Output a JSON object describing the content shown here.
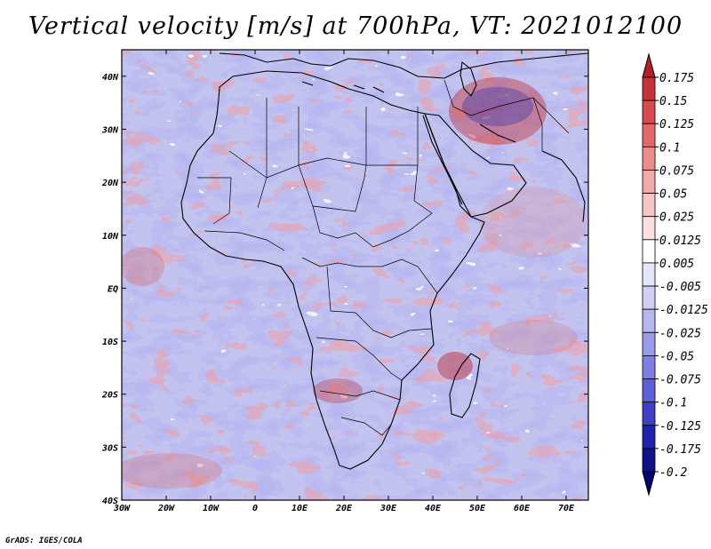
{
  "title": "Vertical velocity [m/s] at 700hPa, VT: 2021012100",
  "footer": "GrADS: IGES/COLA",
  "map": {
    "lon_range": [
      -30,
      75
    ],
    "lat_range": [
      -40,
      45
    ],
    "lon_ticks": [
      "30W",
      "20W",
      "10W",
      "0",
      "10E",
      "20E",
      "30E",
      "40E",
      "50E",
      "60E",
      "70E"
    ],
    "lat_ticks": [
      "40N",
      "30N",
      "20N",
      "10N",
      "EQ",
      "10S",
      "20S",
      "30S",
      "40S"
    ]
  },
  "colorbar": {
    "labels": [
      "0.175",
      "0.15",
      "0.125",
      "0.1",
      "0.075",
      "0.05",
      "0.025",
      "0.0125",
      "0.005",
      "-0.005",
      "-0.0125",
      "-0.025",
      "-0.05",
      "-0.075",
      "-0.1",
      "-0.125",
      "-0.175",
      "-0.2"
    ],
    "colors": [
      "#b3202a",
      "#c8313b",
      "#d84a4f",
      "#e36a6c",
      "#eb8d8d",
      "#f1aaaa",
      "#f6c6c6",
      "#fae0e0",
      "#ffffff",
      "#e6e6fa",
      "#cfcff5",
      "#b6b6f0",
      "#9a9aea",
      "#7f7fe3",
      "#5f5fd8",
      "#3f3fca",
      "#2222b0",
      "#10108a",
      "#000070"
    ]
  },
  "colors": {
    "frame": "#000000",
    "coast": "#000000"
  }
}
